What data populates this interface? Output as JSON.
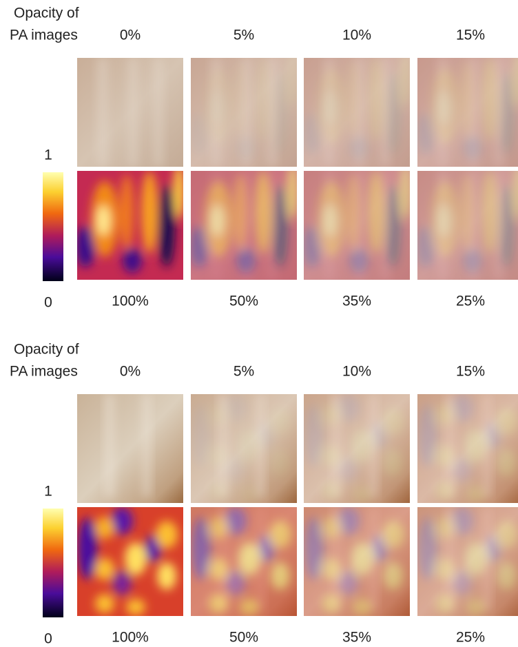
{
  "panels": [
    {
      "label": [
        "Opacity of",
        "PA images"
      ],
      "top_labels": [
        "0%",
        "5%",
        "10%",
        "15%"
      ],
      "bottom_labels": [
        "100%",
        "50%",
        "35%",
        "25%"
      ],
      "colorbar": {
        "max": "1",
        "min": "0"
      }
    },
    {
      "label": [
        "Opacity of",
        "PA images"
      ],
      "top_labels": [
        "0%",
        "5%",
        "10%",
        "15%"
      ],
      "bottom_labels": [
        "100%",
        "50%",
        "35%",
        "25%"
      ],
      "colorbar": {
        "max": "1",
        "min": "0"
      }
    }
  ]
}
